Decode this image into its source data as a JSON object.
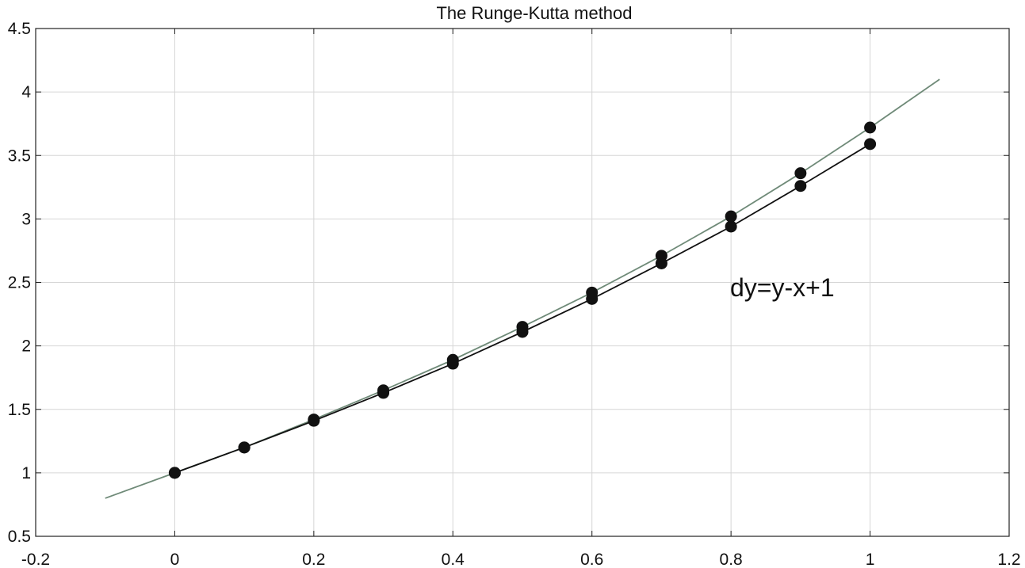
{
  "chart_data": {
    "type": "line",
    "title": "The Runge-Kutta method",
    "xlabel": "",
    "ylabel": "",
    "xlim": [
      -0.2,
      1.2
    ],
    "ylim": [
      0.5,
      4.5
    ],
    "x_ticks": [
      -0.2,
      0,
      0.2,
      0.4,
      0.6,
      0.8,
      1,
      1.2
    ],
    "x_tick_labels": [
      "-0.2",
      "0",
      "0.2",
      "0.4",
      "0.6",
      "0.8",
      "1",
      "1.2"
    ],
    "y_ticks": [
      0.5,
      1,
      1.5,
      2,
      2.5,
      3,
      3.5,
      4,
      4.5
    ],
    "y_tick_labels": [
      "0.5",
      "1",
      "1.5",
      "2",
      "2.5",
      "3",
      "3.5",
      "4",
      "4.5"
    ],
    "grid": true,
    "annotation": "dy=y-x+1",
    "series": [
      {
        "color": "#6f8a78",
        "style": "line",
        "x": [
          -0.1,
          0,
          0.1,
          0.2,
          0.3,
          0.4,
          0.5,
          0.6,
          0.7,
          0.8,
          0.9,
          1.0,
          1.1
        ],
        "y": [
          0.8,
          1.0,
          1.2,
          1.42,
          1.65,
          1.89,
          2.15,
          2.42,
          2.71,
          3.02,
          3.36,
          3.72,
          4.1
        ]
      },
      {
        "color": "#111111",
        "style": "line+markers",
        "x": [
          0,
          0.1,
          0.2,
          0.3,
          0.4,
          0.5,
          0.6,
          0.7,
          0.8,
          0.9,
          1.0
        ],
        "y": [
          1.0,
          1.2,
          1.41,
          1.63,
          1.86,
          2.11,
          2.37,
          2.65,
          2.94,
          3.26,
          3.59
        ]
      },
      {
        "color": "#111111",
        "style": "markers",
        "x": [
          0,
          0.1,
          0.2,
          0.3,
          0.4,
          0.5,
          0.6,
          0.7,
          0.8,
          0.9,
          1.0
        ],
        "y": [
          1.0,
          1.2,
          1.42,
          1.65,
          1.89,
          2.15,
          2.42,
          2.71,
          3.02,
          3.36,
          3.72
        ]
      }
    ]
  }
}
